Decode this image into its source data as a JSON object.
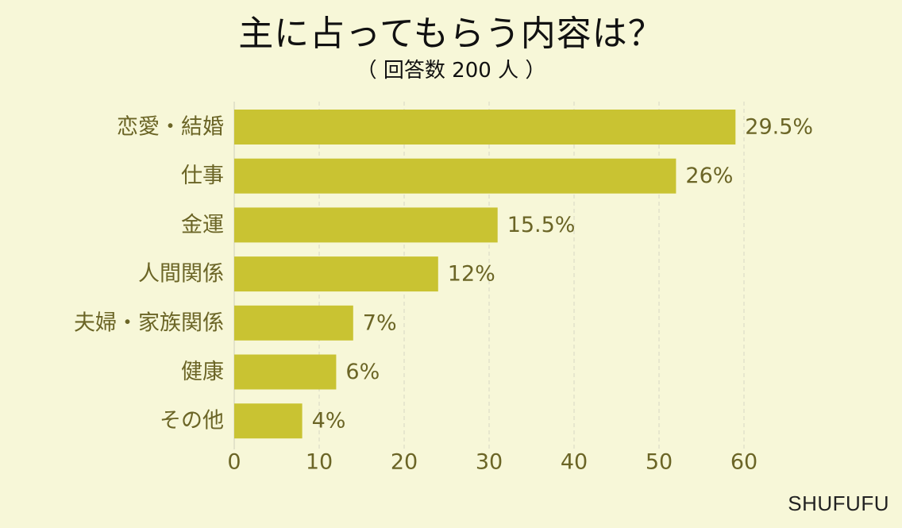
{
  "chart_data": {
    "type": "bar",
    "orientation": "horizontal",
    "title": "主に占ってもらう内容は？",
    "subtitle": "（ 回答数 200 人 ）",
    "categories": [
      "恋愛・結婚",
      "仕事",
      "金運",
      "人間関係",
      "夫婦・家族関係",
      "健康",
      "その他"
    ],
    "values": [
      59,
      52,
      31,
      24,
      14,
      12,
      8
    ],
    "data_labels": [
      "29.5%",
      "26%",
      "15.5%",
      "12%",
      "7%",
      "6%",
      "4%"
    ],
    "x_ticks": [
      0,
      10,
      20,
      30,
      40,
      50,
      60
    ],
    "xlim": [
      0,
      60
    ],
    "grid": "vertical dashed",
    "colors": {
      "bar": "#c9c332",
      "background": "#f7f7d8",
      "label": "#6b6526",
      "grid": "#d7d7c4"
    }
  },
  "brand": "SHUFUFU"
}
